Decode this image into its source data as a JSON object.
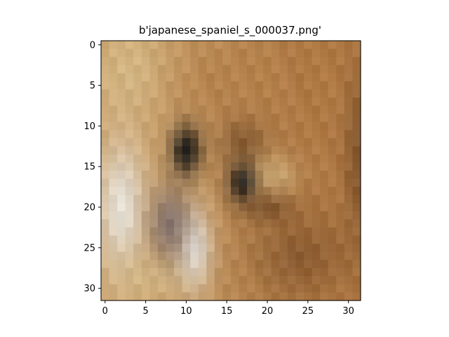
{
  "figure": {
    "title": "b'japanese_spaniel_s_000037.png'"
  },
  "image": {
    "description_icon": "pixelated-dog-photo",
    "grid_size": 32,
    "palette": {
      "fur_light": "#c9a06a",
      "fur_mid": "#b07a45",
      "fur_dark": "#6b4322",
      "white": "#e8e6e0",
      "grey": "#7a6c6c",
      "black": "#141414",
      "tan": "#d8c08e"
    }
  },
  "axes": {
    "x_ticks": [
      "0",
      "5",
      "10",
      "15",
      "20",
      "25",
      "30"
    ],
    "y_ticks": [
      "0",
      "5",
      "10",
      "15",
      "20",
      "25",
      "30"
    ],
    "x_tick_values": [
      0,
      5,
      10,
      15,
      20,
      25,
      30
    ],
    "y_tick_values": [
      0,
      5,
      10,
      15,
      20,
      25,
      30
    ],
    "xlim": [
      -0.5,
      31.5
    ],
    "ylim": [
      31.5,
      -0.5
    ]
  }
}
